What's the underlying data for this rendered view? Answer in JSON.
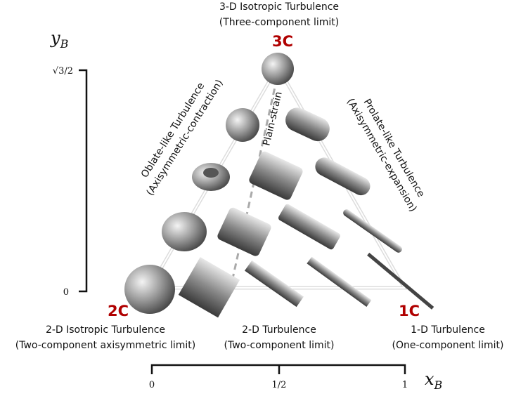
{
  "top": {
    "corner": "3C",
    "title": "3-D Isotropic Turbulence",
    "subtitle": "(Three-component limit)"
  },
  "left": {
    "corner": "2C",
    "title": "2-D Isotropic Turbulence",
    "subtitle": "(Two-component axisymmetric limit)"
  },
  "right": {
    "corner": "1C",
    "title": "1-D Turbulence",
    "subtitle": "(One-component limit)"
  },
  "bottom": {
    "title": "2-D Turbulence",
    "subtitle": "(Two-component limit)"
  },
  "oblate": {
    "title": "Oblate-like Turbulence",
    "subtitle": "(Axisymmetric-contraction)"
  },
  "prolate": {
    "title": "Prolate-like Turbulence",
    "subtitle": "(Axisymmetric-expansion)"
  },
  "plain_strain": "Plain-strain",
  "y_axis": {
    "symbol": "y",
    "subscript": "B",
    "ticks": [
      "√3/2",
      "0"
    ]
  },
  "x_axis": {
    "symbol": "x",
    "subscript": "B",
    "ticks": [
      "0",
      "1/2",
      "1"
    ]
  }
}
